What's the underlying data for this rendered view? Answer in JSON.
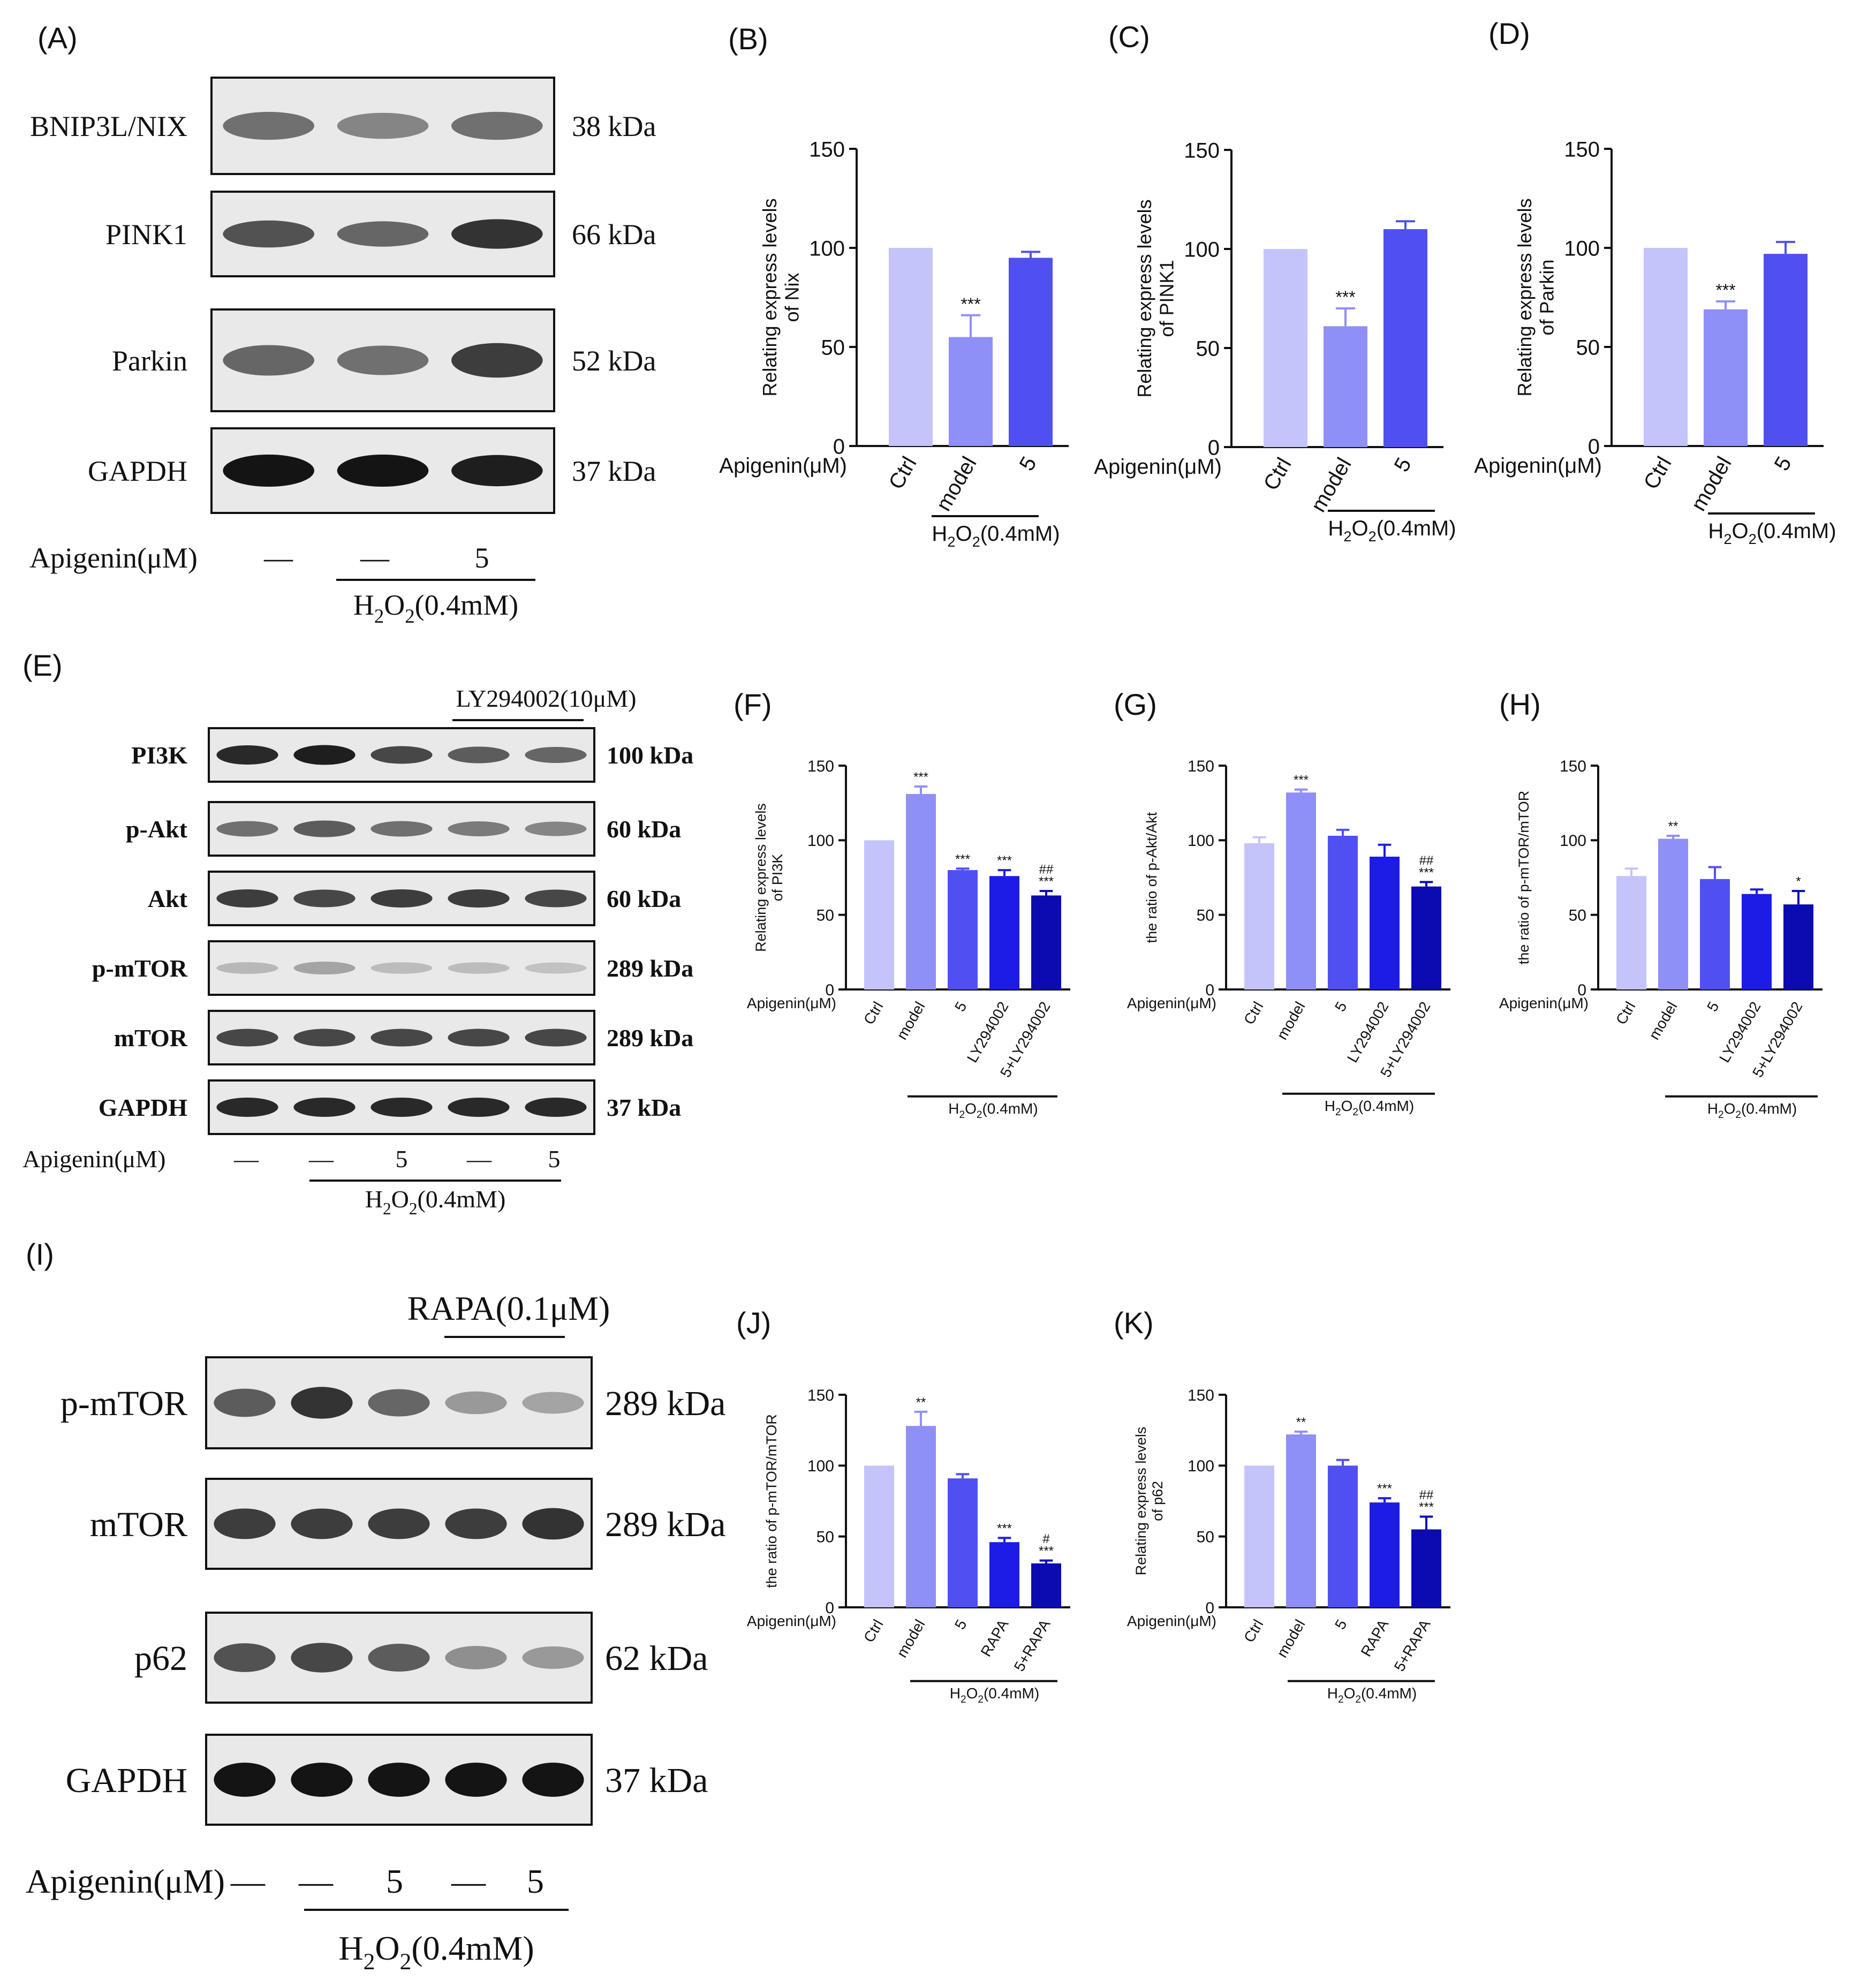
{
  "panels": [
    {
      "id": "A",
      "label": "(A)"
    },
    {
      "id": "E",
      "label": "(E)"
    },
    {
      "id": "I",
      "label": "(I)"
    }
  ],
  "blots": [
    {
      "id": "A",
      "lanes": 3,
      "rows": [
        {
          "protein": "BNIP3L/NIX",
          "kda": "38 kDa",
          "bands": [
            0.55,
            0.45,
            0.55
          ]
        },
        {
          "protein": "PINK1",
          "kda": "66 kDa",
          "bands": [
            0.7,
            0.6,
            0.85
          ]
        },
        {
          "protein": "Parkin",
          "kda": "52 kDa",
          "bands": [
            0.6,
            0.55,
            0.8
          ]
        },
        {
          "protein": "GAPDH",
          "kda": "37 kDa",
          "bands": [
            1,
            1,
            0.95
          ]
        }
      ],
      "treatment_label": "Apigenin(μM)",
      "lane_treatments": [
        "—",
        "—",
        "5"
      ],
      "h2o2_label": "H2O2(0.4mM)",
      "top_label": ""
    },
    {
      "id": "E",
      "lanes": 5,
      "rows": [
        {
          "protein": "PI3K",
          "kda": "100 kDa",
          "bands": [
            0.9,
            0.95,
            0.75,
            0.65,
            0.6
          ]
        },
        {
          "protein": "p-Akt",
          "kda": "60 kDa",
          "bands": [
            0.55,
            0.65,
            0.55,
            0.5,
            0.45
          ]
        },
        {
          "protein": "Akt",
          "kda": "60 kDa",
          "bands": [
            0.8,
            0.75,
            0.8,
            0.8,
            0.75
          ]
        },
        {
          "protein": "p-mTOR",
          "kda": "289 kDa",
          "bands": [
            0.2,
            0.3,
            0.18,
            0.18,
            0.15
          ]
        },
        {
          "protein": "mTOR",
          "kda": "289 kDa",
          "bands": [
            0.75,
            0.75,
            0.75,
            0.75,
            0.75
          ]
        },
        {
          "protein": "GAPDH",
          "kda": "37 kDa",
          "bands": [
            0.9,
            0.9,
            0.9,
            0.9,
            0.9
          ]
        }
      ],
      "treatment_label": "Apigenin(μM)",
      "lane_treatments": [
        "—",
        "—",
        "5",
        "—",
        "5"
      ],
      "h2o2_label": "H2O2(0.4mM)",
      "top_label": "LY294002(10μM)"
    },
    {
      "id": "I",
      "lanes": 5,
      "rows": [
        {
          "protein": "p-mTOR",
          "kda": "289 kDa",
          "bands": [
            0.65,
            0.85,
            0.6,
            0.35,
            0.3
          ]
        },
        {
          "protein": "mTOR",
          "kda": "289 kDa",
          "bands": [
            0.8,
            0.8,
            0.8,
            0.8,
            0.85
          ]
        },
        {
          "protein": "p62",
          "kda": "62 kDa",
          "bands": [
            0.7,
            0.75,
            0.65,
            0.4,
            0.35
          ]
        },
        {
          "protein": "GAPDH",
          "kda": "37 kDa",
          "bands": [
            1,
            1,
            1,
            1,
            1
          ]
        }
      ],
      "treatment_label": "Apigenin(μM)",
      "lane_treatments": [
        "—",
        "—",
        "5",
        "—",
        "5"
      ],
      "h2o2_label": "H2O2(0.4mM)",
      "top_label": "RAPA(0.1μM)"
    }
  ],
  "chart_data": [
    {
      "panel": "(B)",
      "type": "bar",
      "categories": [
        "Ctrl",
        "model",
        "5"
      ],
      "values": [
        100,
        55,
        95
      ],
      "errors": [
        0,
        11,
        3
      ],
      "annotations": [
        "",
        "***",
        ""
      ],
      "ylabel": "Relating express levels of Nix",
      "ylim": [
        0,
        150
      ],
      "yticks": [
        0,
        50,
        100,
        150
      ],
      "xprefix": "Apigenin(μM)",
      "group_label": "H2O2(0.4mM)",
      "colors": [
        "#c4c4fb",
        "#8f8ff8",
        "#5050f2"
      ]
    },
    {
      "panel": "(C)",
      "type": "bar",
      "categories": [
        "Ctrl",
        "model",
        "5"
      ],
      "values": [
        100,
        61,
        110
      ],
      "errors": [
        0,
        9,
        4
      ],
      "annotations": [
        "",
        "***",
        ""
      ],
      "ylabel": "Relating express levels of PINK1",
      "ylim": [
        0,
        150
      ],
      "yticks": [
        0,
        50,
        100,
        150
      ],
      "xprefix": "Apigenin(μM)",
      "group_label": "H2O2(0.4mM)",
      "colors": [
        "#c4c4fb",
        "#8f8ff8",
        "#5050f2"
      ]
    },
    {
      "panel": "(D)",
      "type": "bar",
      "categories": [
        "Ctrl",
        "model",
        "5"
      ],
      "values": [
        100,
        69,
        97
      ],
      "errors": [
        0,
        4,
        6
      ],
      "annotations": [
        "",
        "***",
        ""
      ],
      "ylabel": "Relating express levels of Parkin",
      "ylim": [
        0,
        150
      ],
      "yticks": [
        0,
        50,
        100,
        150
      ],
      "xprefix": "Apigenin(μM)",
      "group_label": "H2O2(0.4mM)",
      "colors": [
        "#c4c4fb",
        "#8f8ff8",
        "#5050f2"
      ]
    },
    {
      "panel": "(F)",
      "type": "bar",
      "categories": [
        "Ctrl",
        "model",
        "5",
        "LY294002",
        "5+LY294002"
      ],
      "values": [
        100,
        131,
        80,
        76,
        63
      ],
      "errors": [
        0,
        5,
        1,
        4,
        3
      ],
      "annotations": [
        "",
        "***",
        "***",
        "***",
        "##\n***"
      ],
      "ylabel": "Relating express levels of PI3K",
      "ylim": [
        0,
        150
      ],
      "yticks": [
        0,
        50,
        100,
        150
      ],
      "xprefix": "Apigenin(μM)",
      "group_label": "H2O2(0.4mM)",
      "colors": [
        "#c4c4fb",
        "#8f8ff8",
        "#5050f2",
        "#1c1ce6",
        "#0b0bb2"
      ]
    },
    {
      "panel": "(G)",
      "type": "bar",
      "categories": [
        "Ctrl",
        "model",
        "5",
        "LY294002",
        "5+LY294002"
      ],
      "values": [
        98,
        132,
        103,
        89,
        69
      ],
      "errors": [
        4,
        2,
        4,
        8,
        3
      ],
      "annotations": [
        "",
        "***",
        "",
        "",
        "##\n***"
      ],
      "ylabel": "the ratio of p-Akt/Akt",
      "ylim": [
        0,
        150
      ],
      "yticks": [
        0,
        50,
        100,
        150
      ],
      "xprefix": "Apigenin(μM)",
      "group_label": "H2O2(0.4mM)",
      "colors": [
        "#c4c4fb",
        "#8f8ff8",
        "#5050f2",
        "#1c1ce6",
        "#0b0bb2"
      ]
    },
    {
      "panel": "(H)",
      "type": "bar",
      "categories": [
        "Ctrl",
        "model",
        "5",
        "LY294002",
        "5+LY294002"
      ],
      "values": [
        76,
        101,
        74,
        64,
        57
      ],
      "errors": [
        5,
        2,
        8,
        3,
        9
      ],
      "annotations": [
        "",
        "**",
        "",
        "",
        "*"
      ],
      "ylabel": "the ratio of p-mTOR/mTOR",
      "ylim": [
        0,
        150
      ],
      "yticks": [
        0,
        50,
        100,
        150
      ],
      "xprefix": "Apigenin(μM)",
      "group_label": "H2O2(0.4mM)",
      "colors": [
        "#c4c4fb",
        "#8f8ff8",
        "#5050f2",
        "#1c1ce6",
        "#0b0bb2"
      ]
    },
    {
      "panel": "(J)",
      "type": "bar",
      "categories": [
        "Ctrl",
        "model",
        "5",
        "RAPA",
        "5+RAPA"
      ],
      "values": [
        100,
        128,
        91,
        46,
        31
      ],
      "errors": [
        0,
        10,
        3,
        3,
        2
      ],
      "annotations": [
        "",
        "**",
        "",
        "***",
        "#\n***"
      ],
      "ylabel": "the ratio of p-mTOR/mTOR",
      "ylim": [
        0,
        150
      ],
      "yticks": [
        0,
        50,
        100,
        150
      ],
      "xprefix": "Apigenin(μM)",
      "group_label": "H2O2(0.4mM)",
      "colors": [
        "#c4c4fb",
        "#8f8ff8",
        "#5050f2",
        "#1c1ce6",
        "#0b0bb2"
      ]
    },
    {
      "panel": "(K)",
      "type": "bar",
      "categories": [
        "Ctrl",
        "model",
        "5",
        "RAPA",
        "5+RAPA"
      ],
      "values": [
        100,
        122,
        100,
        74,
        55
      ],
      "errors": [
        0,
        2,
        4,
        3,
        9
      ],
      "annotations": [
        "",
        "**",
        "",
        "***",
        "##\n***"
      ],
      "ylabel": "Relating express levels of p62",
      "ylim": [
        0,
        150
      ],
      "yticks": [
        0,
        50,
        100,
        150
      ],
      "xprefix": "Apigenin(μM)",
      "group_label": "H2O2(0.4mM)",
      "colors": [
        "#c4c4fb",
        "#8f8ff8",
        "#5050f2",
        "#1c1ce6",
        "#0b0bb2"
      ]
    }
  ]
}
